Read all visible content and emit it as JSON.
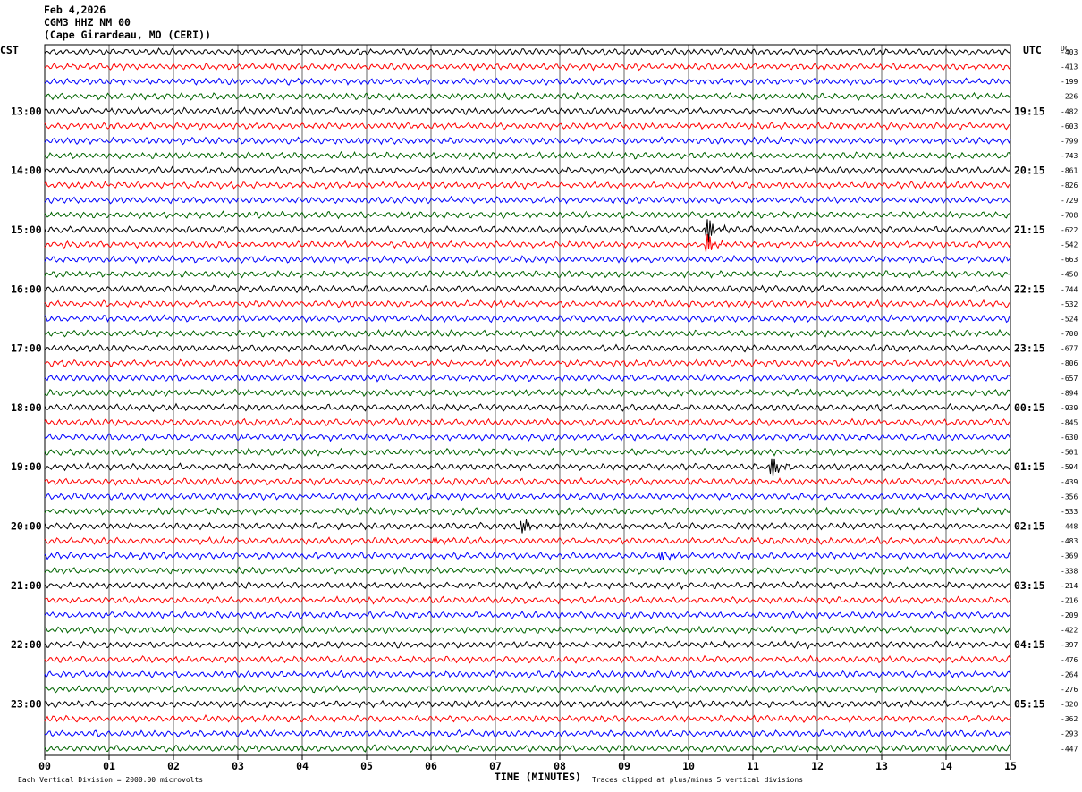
{
  "header": {
    "date": "Feb 4,2026",
    "station": "CGM3 HHZ NM 00",
    "location": "(Cape Girardeau, MO (CERI))"
  },
  "axes": {
    "left_label": "CST",
    "right_label": "UTC",
    "dc_label": "DC",
    "x_label": "TIME (MINUTES)"
  },
  "footer": {
    "scale_note": "Each Vertical Division = 2000.00 microvolts",
    "clip_note": "Traces clipped at plus/minus 5 vertical divisions"
  },
  "colors": {
    "trace_cycle": [
      "#000000",
      "#ff0000",
      "#0000ff",
      "#006400"
    ],
    "grid": "#000000"
  },
  "chart_data": {
    "type": "line",
    "title": "",
    "x_ticks": [
      "00",
      "01",
      "02",
      "03",
      "04",
      "05",
      "06",
      "07",
      "08",
      "09",
      "10",
      "11",
      "12",
      "13",
      "14",
      "15"
    ],
    "xlim": [
      0,
      15
    ],
    "left_hour_labels": [
      "13:00",
      "14:00",
      "15:00",
      "16:00",
      "17:00",
      "18:00",
      "19:00",
      "20:00",
      "21:00",
      "22:00",
      "23:00"
    ],
    "right_hour_labels": [
      "19:15",
      "20:15",
      "21:15",
      "22:15",
      "23:15",
      "00:15",
      "01:15",
      "02:15",
      "03:15",
      "04:15",
      "05:15"
    ],
    "dc_offsets": [
      "-403",
      "-413",
      "-199",
      "-226",
      "-482",
      "-603",
      "-799",
      "-743",
      "-861",
      "-826",
      "-729",
      "-708",
      "-622",
      "-542",
      "-663",
      "-450",
      "-744",
      "-532",
      "-524",
      "-700",
      "-677",
      "-806",
      "-657",
      "-894",
      "-939",
      "-845",
      "-630",
      "-501",
      "-594",
      "-439",
      "-356",
      "-533",
      "-448",
      "-483",
      "-369",
      "-338",
      "-214",
      "-216",
      "-209",
      "-422",
      "-397",
      "-476",
      "-264",
      "-276",
      "-320",
      "-362",
      "-293",
      "-447"
    ],
    "trace_count": 48,
    "traces_per_hour": 4,
    "events": [
      {
        "trace": 12,
        "minute": 10.3,
        "amplitude": 1.0
      },
      {
        "trace": 13,
        "minute": 10.3,
        "amplitude": 0.7
      },
      {
        "trace": 28,
        "minute": 11.3,
        "amplitude": 0.8
      },
      {
        "trace": 32,
        "minute": 7.4,
        "amplitude": 0.7
      },
      {
        "trace": 33,
        "minute": 6.1,
        "amplitude": 0.3
      },
      {
        "trace": 34,
        "minute": 9.6,
        "amplitude": 0.5
      }
    ]
  }
}
